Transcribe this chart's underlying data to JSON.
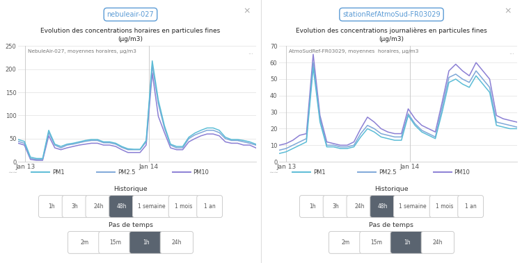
{
  "bg_color": "#ffffff",
  "left": {
    "badge_text": "nebuleair-027",
    "badge_color": "#5b9bd5",
    "title_line1": "Evolution des concentrations horaires en particules fines",
    "title_line2": "(µg/m3)",
    "chart_label": "NebuleAir-027, moyennes horaires, µg/m3",
    "ylim": [
      0,
      250
    ],
    "yticks": [
      0,
      50,
      100,
      150,
      200,
      250
    ],
    "xtick_labels": [
      "Jan 13",
      "Jan 14"
    ],
    "xtick_positions": [
      0.03,
      0.55
    ],
    "vline_positions": [
      0.03,
      0.55
    ],
    "colors": {
      "PM1": "#5bbcd6",
      "PM2.5": "#7ea7d8",
      "PM10": "#8b7fd4"
    },
    "PM1": [
      48,
      44,
      10,
      7,
      7,
      68,
      38,
      33,
      38,
      40,
      43,
      46,
      48,
      48,
      43,
      43,
      40,
      33,
      28,
      27,
      27,
      46,
      218,
      133,
      78,
      38,
      33,
      33,
      53,
      62,
      68,
      73,
      73,
      68,
      53,
      48,
      48,
      46,
      43,
      38
    ],
    "PM2.5": [
      44,
      40,
      7,
      5,
      5,
      63,
      36,
      30,
      36,
      38,
      41,
      44,
      46,
      46,
      41,
      41,
      38,
      31,
      26,
      26,
      26,
      43,
      208,
      125,
      73,
      36,
      30,
      30,
      50,
      58,
      63,
      68,
      68,
      63,
      50,
      46,
      46,
      43,
      40,
      36
    ],
    "PM10": [
      40,
      36,
      5,
      3,
      3,
      56,
      30,
      26,
      30,
      33,
      36,
      38,
      40,
      40,
      36,
      36,
      33,
      26,
      20,
      20,
      20,
      36,
      192,
      98,
      63,
      30,
      26,
      26,
      43,
      50,
      56,
      60,
      60,
      56,
      43,
      40,
      40,
      36,
      36,
      30
    ]
  },
  "right": {
    "badge_text": "stationRefAtmoSud-FR03029",
    "badge_color": "#5b9bd5",
    "title_line1": "Evolution des concentrations journalières en particules fines",
    "title_line2": "(µg/m3)",
    "chart_label": "AtmoSudRef-FR03029, moyennes  horaires, µg/m3",
    "ylim": [
      0,
      70
    ],
    "yticks": [
      0,
      10,
      20,
      30,
      40,
      50,
      60,
      70
    ],
    "xtick_labels": [
      "Jan 13",
      "Jan 14"
    ],
    "xtick_positions": [
      0.03,
      0.55
    ],
    "vline_positions": [
      0.03,
      0.55
    ],
    "colors": {
      "PM1": "#5bbcd6",
      "PM2.5": "#7ea7d8",
      "PM10": "#8b7fd4"
    },
    "PM1": [
      5,
      6,
      8,
      10,
      12,
      57,
      24,
      9,
      9,
      8,
      8,
      9,
      15,
      20,
      18,
      15,
      14,
      13,
      13,
      28,
      22,
      18,
      16,
      14,
      30,
      48,
      50,
      47,
      45,
      52,
      47,
      42,
      22,
      21,
      20,
      20
    ],
    "PM2.5": [
      7,
      8,
      10,
      12,
      14,
      60,
      26,
      10,
      10,
      9,
      9,
      10,
      17,
      22,
      20,
      17,
      16,
      15,
      15,
      29,
      23,
      19,
      17,
      15,
      33,
      51,
      53,
      50,
      48,
      55,
      50,
      45,
      24,
      23,
      22,
      21
    ],
    "PM10": [
      10,
      11,
      13,
      16,
      17,
      65,
      28,
      12,
      11,
      10,
      10,
      12,
      20,
      27,
      24,
      20,
      18,
      17,
      17,
      32,
      26,
      22,
      20,
      18,
      36,
      55,
      59,
      55,
      52,
      60,
      55,
      50,
      28,
      26,
      25,
      24
    ]
  },
  "historique_label": "Historique",
  "historique_buttons": [
    "1h",
    "3h",
    "24h",
    "48h",
    "1 semaine",
    "1 mois",
    "1 an"
  ],
  "historique_active": "48h",
  "pas_de_temps_label": "Pas de temps",
  "pas_de_temps_buttons": [
    "2m",
    "15m",
    "1h",
    "24h"
  ],
  "pas_de_temps_active": "1h",
  "close_x": "×",
  "dots": "...",
  "legend_pm1": "PM1",
  "legend_pm25": "PM2.5",
  "legend_pm10": "PM10"
}
